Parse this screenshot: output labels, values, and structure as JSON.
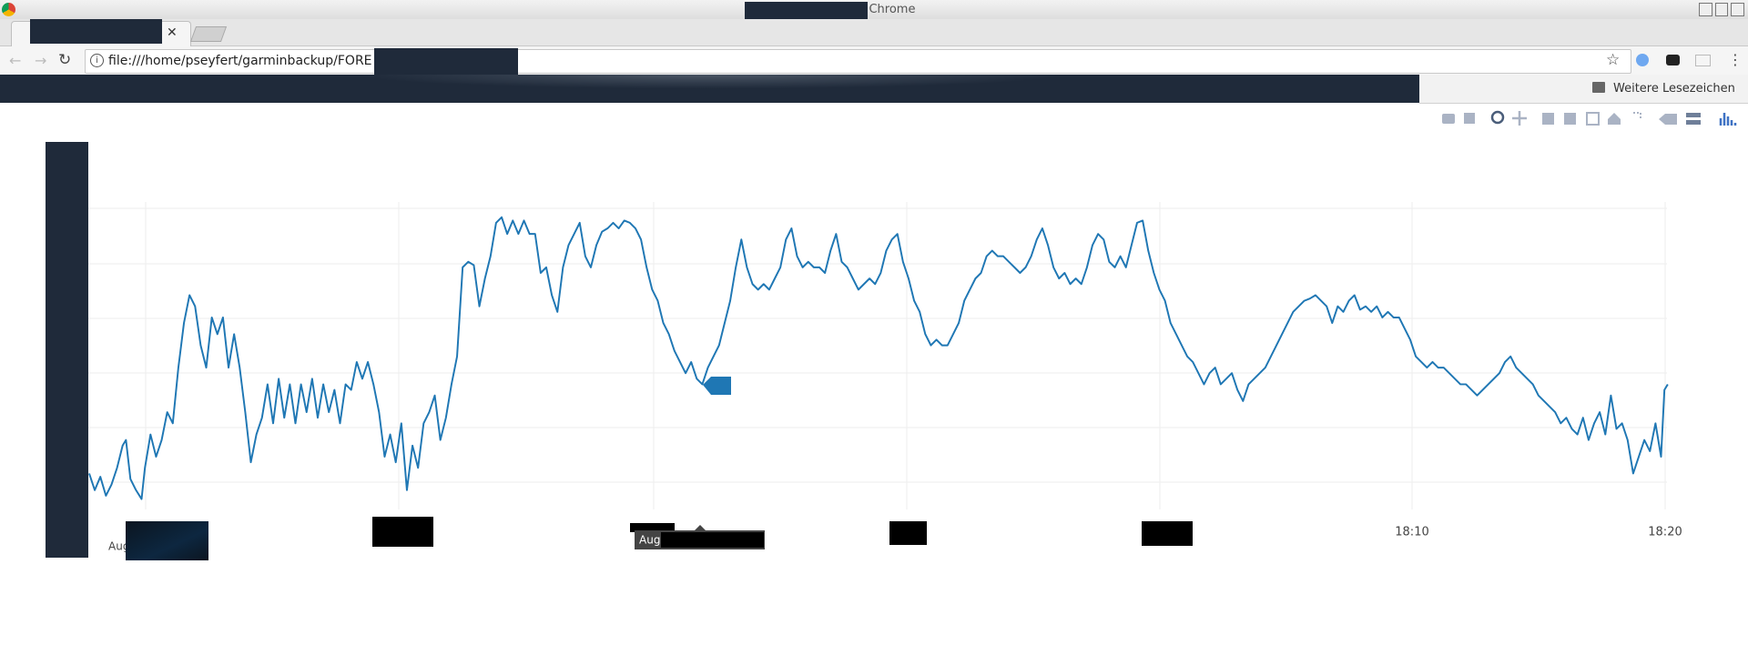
{
  "window": {
    "title": "oogle Chrome"
  },
  "toolbar": {
    "url": "file:///home/pseyfert/garminbackup/FORE",
    "bookmarks": "Weitere Lesezeichen"
  },
  "plot": {
    "x_tick_labels": [
      "Aug",
      "18:10",
      "18:20"
    ],
    "hover_label": "Aug"
  }
}
